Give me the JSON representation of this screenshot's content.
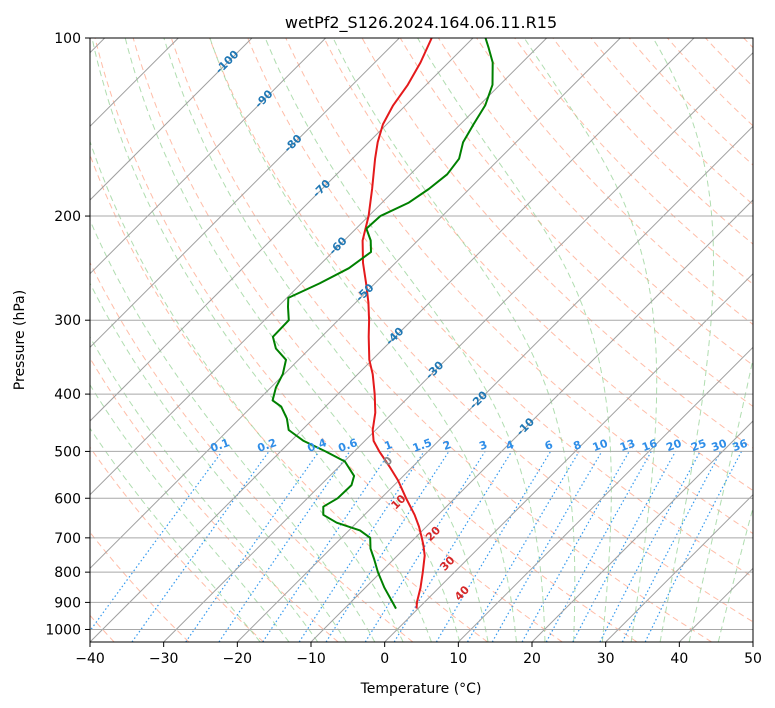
{
  "chart_data": {
    "type": "line",
    "title": "wetPf2_S126.2024.164.06.11.R15",
    "xlabel": "Temperature (°C)",
    "ylabel": "Pressure (hPa)",
    "xlim": [
      -40,
      50
    ],
    "ylim": [
      1050,
      100
    ],
    "y_scale": "log",
    "x_ticks": [
      -40,
      -30,
      -20,
      -10,
      0,
      10,
      20,
      30,
      40,
      50
    ],
    "y_ticks": [
      100,
      200,
      300,
      400,
      500,
      600,
      700,
      800,
      900,
      1000
    ],
    "skew": 45,
    "grid": true,
    "colors": {
      "temperature": "#e41a1c",
      "dewpoint": "#008000",
      "isotherm": "#a0a0a0",
      "dry_adiabat": "#ff9a7a",
      "moist_adiabat": "#8fcf8f",
      "mixing_ratio": "#3399ee",
      "isotherm_label": "#1f77b4",
      "mixing_label": "#2f8ee8",
      "adiabat_label": "#d62728"
    },
    "series": [
      {
        "key": "temperature",
        "points": [
          {
            "p": 922,
            "t": -0.2
          },
          {
            "p": 900,
            "t": -1.0
          },
          {
            "p": 850,
            "t": -2.5
          },
          {
            "p": 800,
            "t": -4.3
          },
          {
            "p": 750,
            "t": -6.3
          },
          {
            "p": 720,
            "t": -7.9
          },
          {
            "p": 700,
            "t": -9.1
          },
          {
            "p": 670,
            "t": -11.0
          },
          {
            "p": 640,
            "t": -13.2
          },
          {
            "p": 600,
            "t": -16.6
          },
          {
            "p": 560,
            "t": -20.1
          },
          {
            "p": 530,
            "t": -23.2
          },
          {
            "p": 500,
            "t": -26.6
          },
          {
            "p": 480,
            "t": -28.8
          },
          {
            "p": 460,
            "t": -30.4
          },
          {
            "p": 430,
            "t": -32.4
          },
          {
            "p": 400,
            "t": -35.0
          },
          {
            "p": 370,
            "t": -38.0
          },
          {
            "p": 350,
            "t": -40.4
          },
          {
            "p": 320,
            "t": -43.6
          },
          {
            "p": 300,
            "t": -45.8
          },
          {
            "p": 280,
            "t": -48.3
          },
          {
            "p": 260,
            "t": -51.2
          },
          {
            "p": 240,
            "t": -54.4
          },
          {
            "p": 220,
            "t": -57.5
          },
          {
            "p": 200,
            "t": -60.0
          },
          {
            "p": 180,
            "t": -63.2
          },
          {
            "p": 160,
            "t": -66.9
          },
          {
            "p": 150,
            "t": -68.8
          },
          {
            "p": 140,
            "t": -70.5
          },
          {
            "p": 130,
            "t": -71.7
          },
          {
            "p": 120,
            "t": -72.5
          },
          {
            "p": 110,
            "t": -73.8
          },
          {
            "p": 100,
            "t": -75.6
          }
        ]
      },
      {
        "key": "dewpoint",
        "points": [
          {
            "p": 922,
            "t": -3.0
          },
          {
            "p": 900,
            "t": -4.3
          },
          {
            "p": 850,
            "t": -7.4
          },
          {
            "p": 800,
            "t": -10.4
          },
          {
            "p": 760,
            "t": -12.7
          },
          {
            "p": 730,
            "t": -14.6
          },
          {
            "p": 700,
            "t": -16.1
          },
          {
            "p": 680,
            "t": -18.5
          },
          {
            "p": 660,
            "t": -22.7
          },
          {
            "p": 640,
            "t": -25.6
          },
          {
            "p": 620,
            "t": -26.7
          },
          {
            "p": 600,
            "t": -25.9
          },
          {
            "p": 570,
            "t": -25.8
          },
          {
            "p": 550,
            "t": -26.7
          },
          {
            "p": 520,
            "t": -29.9
          },
          {
            "p": 500,
            "t": -33.9
          },
          {
            "p": 480,
            "t": -38.3
          },
          {
            "p": 460,
            "t": -41.8
          },
          {
            "p": 440,
            "t": -43.6
          },
          {
            "p": 420,
            "t": -46.0
          },
          {
            "p": 410,
            "t": -48.0
          },
          {
            "p": 390,
            "t": -49.3
          },
          {
            "p": 370,
            "t": -50.2
          },
          {
            "p": 350,
            "t": -51.7
          },
          {
            "p": 335,
            "t": -54.6
          },
          {
            "p": 320,
            "t": -56.6
          },
          {
            "p": 300,
            "t": -56.7
          },
          {
            "p": 285,
            "t": -58.6
          },
          {
            "p": 275,
            "t": -59.8
          },
          {
            "p": 260,
            "t": -57.5
          },
          {
            "p": 245,
            "t": -55.6
          },
          {
            "p": 230,
            "t": -54.8
          },
          {
            "p": 220,
            "t": -56.4
          },
          {
            "p": 210,
            "t": -58.6
          },
          {
            "p": 200,
            "t": -58.4
          },
          {
            "p": 190,
            "t": -56.4
          },
          {
            "p": 180,
            "t": -55.5
          },
          {
            "p": 170,
            "t": -55.0
          },
          {
            "p": 160,
            "t": -55.5
          },
          {
            "p": 150,
            "t": -57.2
          },
          {
            "p": 140,
            "t": -58.2
          },
          {
            "p": 130,
            "t": -59.2
          },
          {
            "p": 120,
            "t": -61.0
          },
          {
            "p": 110,
            "t": -64.0
          },
          {
            "p": 104,
            "t": -66.5
          },
          {
            "p": 100,
            "t": -68.3
          }
        ]
      }
    ],
    "isotherm_labels": [
      "-100",
      "-90",
      "-80",
      "-70",
      "-60",
      "-50",
      "-40",
      "-30",
      "-20",
      "-10"
    ],
    "isotherm_label_values": [
      -100,
      -90,
      -80,
      -70,
      -60,
      -50,
      -40,
      -30,
      -20,
      -10
    ],
    "mixing_ratio_labels": [
      "0.1",
      "0.2",
      "0.4",
      "0.6",
      "1",
      "1.5",
      "2",
      "3",
      "4",
      "6",
      "8",
      "10",
      "13",
      "16",
      "20",
      "25",
      "30",
      "36"
    ],
    "mixing_ratio_values": [
      0.1,
      0.2,
      0.4,
      0.6,
      1,
      1.5,
      2,
      3,
      4,
      6,
      8,
      10,
      13,
      16,
      20,
      25,
      30,
      36
    ],
    "moist_adiabat_labels": [
      "0",
      "10",
      "20",
      "30",
      "40"
    ],
    "moist_adiabat_values": [
      0,
      10,
      20,
      30,
      40
    ]
  }
}
